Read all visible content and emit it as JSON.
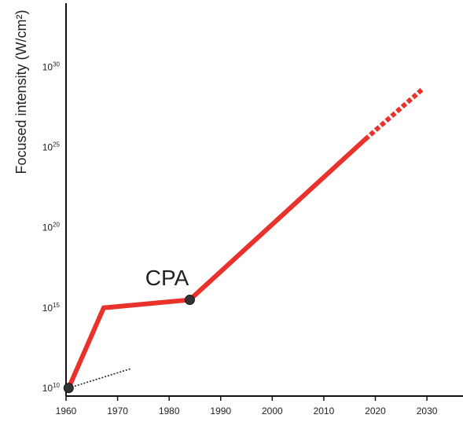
{
  "chart_data": {
    "type": "line",
    "ylabel": "Focused intensity (W/cm²)",
    "xlabel": "",
    "title": "",
    "xlim": [
      1960,
      2037
    ],
    "ylim": [
      9.5,
      34
    ],
    "x_ticks": [
      1960,
      1970,
      1980,
      1990,
      2000,
      2010,
      2020,
      2030
    ],
    "y_ticks": [
      {
        "exp": 10,
        "base": "10",
        "sup": "10"
      },
      {
        "exp": 15,
        "base": "10",
        "sup": "15"
      },
      {
        "exp": 20,
        "base": "10",
        "sup": "20"
      },
      {
        "exp": 25,
        "base": "10",
        "sup": "25"
      },
      {
        "exp": 30,
        "base": "10",
        "sup": "30"
      }
    ],
    "log_scale_y": true,
    "grid": false,
    "series": [
      {
        "style": "solid",
        "color": "#e8322b",
        "x": [
          1960.5,
          1967.3,
          1984
        ],
        "log10_values": [
          10,
          15,
          15.5
        ]
      },
      {
        "style": "solid",
        "color": "#e8322b",
        "x": [
          1984,
          2018
        ],
        "log10_values": [
          15.5,
          25.5
        ]
      },
      {
        "style": "dashed",
        "color": "#e8322b",
        "x": [
          2018,
          2029
        ],
        "log10_values": [
          25.5,
          28.6
        ]
      },
      {
        "style": "dotted",
        "color": "#222222",
        "x": [
          1960.5,
          1972.5
        ],
        "log10_values": [
          10,
          11.2
        ]
      }
    ],
    "markers": [
      {
        "x": 1960.5,
        "log10_value": 10,
        "color": "#333333"
      },
      {
        "x": 1984,
        "log10_value": 15.5,
        "color": "#333333"
      }
    ],
    "annotations": [
      {
        "text": "CPA",
        "x": 1979.6,
        "log10_value": 16.4
      }
    ]
  }
}
